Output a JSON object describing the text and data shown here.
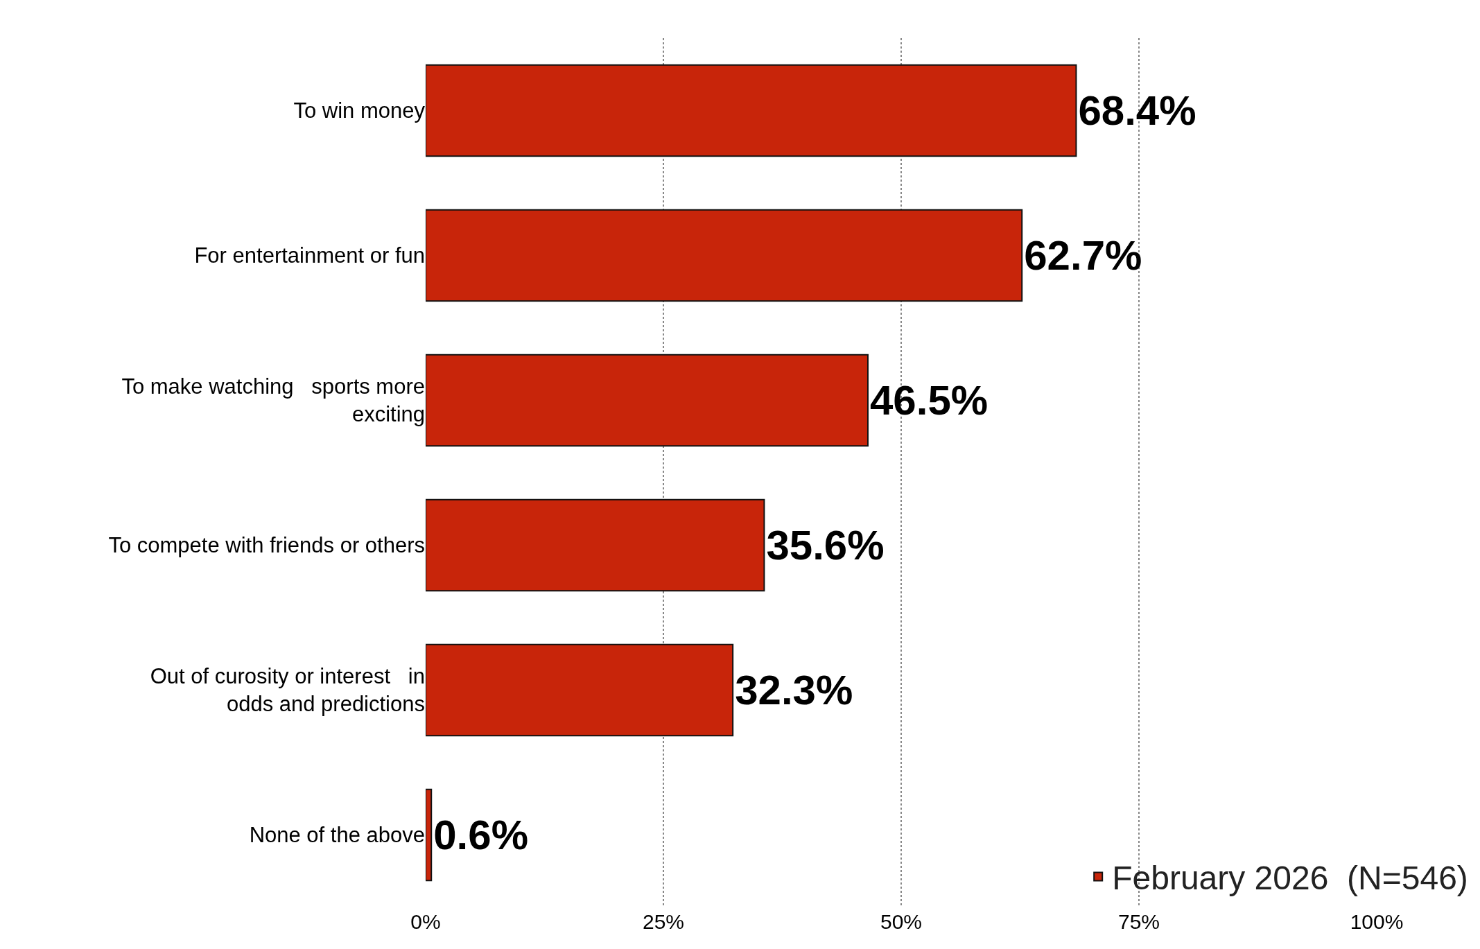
{
  "chart_data": {
    "type": "bar",
    "orientation": "horizontal",
    "categories": [
      "To win money",
      "For entertainment or fun",
      "To make watching   sports more\nexciting",
      "To compete with friends or others",
      "Out of curosity or interest   in\nodds and predictions",
      "None of the above"
    ],
    "series": [
      {
        "name": "February 2026  (N=546)",
        "color": "#c8250a",
        "values": [
          68.4,
          62.7,
          46.5,
          35.6,
          32.3,
          0.6
        ],
        "value_labels": [
          "68.4%",
          "62.7%",
          "46.5%",
          "35.6%",
          "32.3%",
          "0.6%"
        ]
      }
    ],
    "xlim": [
      0,
      100
    ],
    "xticks": [
      {
        "value": 0,
        "label": "0%"
      },
      {
        "value": 25,
        "label": "25%"
      },
      {
        "value": 50,
        "label": "50%"
      },
      {
        "value": 75,
        "label": "75%"
      },
      {
        "value": 100,
        "label": "100%"
      }
    ],
    "grid": "x",
    "legend": "bottom right"
  }
}
